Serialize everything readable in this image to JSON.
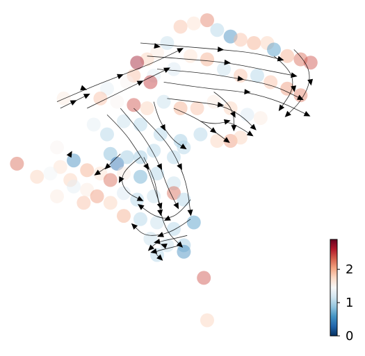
{
  "chart_data": {
    "type": "scatter",
    "title": "",
    "xlabel": "",
    "ylabel": "",
    "axes_visible": false,
    "grid": false,
    "overlay": "velocity-streamlines",
    "colormap": "RdBu_r",
    "colorbar": {
      "placement": "bottom-right",
      "vmin": 0,
      "vmax": 2.9,
      "ticks": [
        0,
        1,
        2
      ],
      "tick_labels": [
        "0",
        "1",
        "2"
      ],
      "stops": [
        "#053061",
        "#2166ac",
        "#4393c3",
        "#92c5de",
        "#d1e5f0",
        "#f7f7f7",
        "#fddbc7",
        "#f4a582",
        "#d6604d",
        "#b2182b",
        "#67001f"
      ]
    },
    "xlim": [
      0,
      100
    ],
    "ylim": [
      0,
      100
    ],
    "points": [
      {
        "x": 52,
        "y": 95,
        "v": 1.9
      },
      {
        "x": 56,
        "y": 96,
        "v": 1.7
      },
      {
        "x": 60,
        "y": 97,
        "v": 2.2
      },
      {
        "x": 63,
        "y": 94,
        "v": 1.0
      },
      {
        "x": 67,
        "y": 92,
        "v": 0.5
      },
      {
        "x": 70,
        "y": 91,
        "v": 1.9
      },
      {
        "x": 74,
        "y": 90,
        "v": 2.0
      },
      {
        "x": 78,
        "y": 90,
        "v": 1.8
      },
      {
        "x": 80,
        "y": 88,
        "v": 0.6
      },
      {
        "x": 84,
        "y": 86,
        "v": 2.0
      },
      {
        "x": 88,
        "y": 85,
        "v": 2.3
      },
      {
        "x": 91,
        "y": 84,
        "v": 2.4
      },
      {
        "x": 48,
        "y": 90,
        "v": 1.1
      },
      {
        "x": 45,
        "y": 87,
        "v": 1.6
      },
      {
        "x": 42,
        "y": 85,
        "v": 1.8
      },
      {
        "x": 39,
        "y": 84,
        "v": 2.7
      },
      {
        "x": 38,
        "y": 80,
        "v": 1.9
      },
      {
        "x": 36,
        "y": 78,
        "v": 1.5
      },
      {
        "x": 44,
        "y": 80,
        "v": 1.3
      },
      {
        "x": 50,
        "y": 82,
        "v": 1.2
      },
      {
        "x": 55,
        "y": 86,
        "v": 1.7
      },
      {
        "x": 60,
        "y": 85,
        "v": 2.0
      },
      {
        "x": 65,
        "y": 82,
        "v": 1.1
      },
      {
        "x": 70,
        "y": 80,
        "v": 1.9
      },
      {
        "x": 75,
        "y": 80,
        "v": 1.0
      },
      {
        "x": 79,
        "y": 78,
        "v": 1.9
      },
      {
        "x": 84,
        "y": 76,
        "v": 2.1
      },
      {
        "x": 88,
        "y": 74,
        "v": 2.2
      },
      {
        "x": 30,
        "y": 76,
        "v": 1.3
      },
      {
        "x": 33,
        "y": 72,
        "v": 1.5
      },
      {
        "x": 28,
        "y": 73,
        "v": 1.9
      },
      {
        "x": 17,
        "y": 73,
        "v": 1.6
      },
      {
        "x": 38,
        "y": 71,
        "v": 2.4
      },
      {
        "x": 42,
        "y": 70,
        "v": 1.8
      },
      {
        "x": 47,
        "y": 72,
        "v": 1.1
      },
      {
        "x": 52,
        "y": 70,
        "v": 2.0
      },
      {
        "x": 57,
        "y": 70,
        "v": 1.9
      },
      {
        "x": 62,
        "y": 72,
        "v": 1.6
      },
      {
        "x": 67,
        "y": 70,
        "v": 1.8
      },
      {
        "x": 72,
        "y": 68,
        "v": 1.2
      },
      {
        "x": 76,
        "y": 67,
        "v": 1.6
      },
      {
        "x": 26,
        "y": 65,
        "v": 1.3
      },
      {
        "x": 30,
        "y": 62,
        "v": 1.0
      },
      {
        "x": 35,
        "y": 66,
        "v": 1.1
      },
      {
        "x": 40,
        "y": 65,
        "v": 1.0
      },
      {
        "x": 46,
        "y": 62,
        "v": 1.0
      },
      {
        "x": 52,
        "y": 60,
        "v": 0.9
      },
      {
        "x": 58,
        "y": 62,
        "v": 1.0
      },
      {
        "x": 63,
        "y": 60,
        "v": 1.8
      },
      {
        "x": 67,
        "y": 60,
        "v": 2.1
      },
      {
        "x": 70,
        "y": 61,
        "v": 1.8
      },
      {
        "x": 31,
        "y": 56,
        "v": 0.8
      },
      {
        "x": 33,
        "y": 53,
        "v": 0.3
      },
      {
        "x": 36,
        "y": 55,
        "v": 0.9
      },
      {
        "x": 40,
        "y": 55,
        "v": 0.9
      },
      {
        "x": 44,
        "y": 57,
        "v": 1.0
      },
      {
        "x": 50,
        "y": 55,
        "v": 1.0
      },
      {
        "x": 53,
        "y": 58,
        "v": 1.0
      },
      {
        "x": 15,
        "y": 58,
        "v": 1.5
      },
      {
        "x": 20,
        "y": 54,
        "v": 0.5
      },
      {
        "x": 16,
        "y": 52,
        "v": 1.7
      },
      {
        "x": 13,
        "y": 50,
        "v": 1.4
      },
      {
        "x": 9,
        "y": 49,
        "v": 1.8
      },
      {
        "x": 3,
        "y": 53,
        "v": 2.3
      },
      {
        "x": 19,
        "y": 48,
        "v": 1.8
      },
      {
        "x": 20,
        "y": 46,
        "v": 1.3
      },
      {
        "x": 24,
        "y": 51,
        "v": 2.0
      },
      {
        "x": 28,
        "y": 50,
        "v": 1.7
      },
      {
        "x": 31,
        "y": 48,
        "v": 2.3
      },
      {
        "x": 35,
        "y": 50,
        "v": 1.6
      },
      {
        "x": 40,
        "y": 49,
        "v": 0.7
      },
      {
        "x": 45,
        "y": 50,
        "v": 1.0
      },
      {
        "x": 50,
        "y": 47,
        "v": 1.1
      },
      {
        "x": 24,
        "y": 45,
        "v": 1.6
      },
      {
        "x": 27,
        "y": 43,
        "v": 2.1
      },
      {
        "x": 31,
        "y": 41,
        "v": 1.8
      },
      {
        "x": 35,
        "y": 44,
        "v": 1.2
      },
      {
        "x": 39,
        "y": 42,
        "v": 1.0
      },
      {
        "x": 44,
        "y": 43,
        "v": 1.1
      },
      {
        "x": 50,
        "y": 44,
        "v": 2.3
      },
      {
        "x": 53,
        "y": 42,
        "v": 1.0
      },
      {
        "x": 35,
        "y": 37,
        "v": 2.0
      },
      {
        "x": 40,
        "y": 36,
        "v": 1.0
      },
      {
        "x": 45,
        "y": 35,
        "v": 1.1
      },
      {
        "x": 50,
        "y": 33,
        "v": 1.0
      },
      {
        "x": 56,
        "y": 35,
        "v": 0.6
      },
      {
        "x": 43,
        "y": 30,
        "v": 1.1
      },
      {
        "x": 48,
        "y": 28,
        "v": 1.1
      },
      {
        "x": 53,
        "y": 28,
        "v": 0.9
      },
      {
        "x": 53,
        "y": 26,
        "v": 0.5
      },
      {
        "x": 45,
        "y": 25,
        "v": 1.0
      },
      {
        "x": 59,
        "y": 18,
        "v": 2.4
      },
      {
        "x": 60,
        "y": 5,
        "v": 1.8
      },
      {
        "x": 43,
        "y": 78,
        "v": 2.5
      },
      {
        "x": 23,
        "y": 41,
        "v": 1.9
      },
      {
        "x": 15,
        "y": 43,
        "v": 1.6
      }
    ],
    "streamlines": [
      {
        "points": [
          [
            40,
            90
          ],
          [
            52,
            89
          ],
          [
            64,
            88
          ],
          [
            74,
            87
          ],
          [
            82,
            85
          ]
        ],
        "arrow": true
      },
      {
        "points": [
          [
            42,
            86
          ],
          [
            55,
            85
          ],
          [
            66,
            84
          ],
          [
            76,
            82
          ],
          [
            86,
            80
          ]
        ],
        "arrow": true
      },
      {
        "points": [
          [
            45,
            82
          ],
          [
            58,
            81
          ],
          [
            70,
            79
          ],
          [
            80,
            77
          ],
          [
            88,
            73
          ]
        ],
        "arrow": true
      },
      {
        "points": [
          [
            47,
            78
          ],
          [
            60,
            76
          ],
          [
            72,
            75
          ],
          [
            82,
            72
          ],
          [
            90,
            68
          ]
        ],
        "arrow": true
      },
      {
        "points": [
          [
            86,
            88
          ],
          [
            90,
            84
          ],
          [
            91,
            78
          ],
          [
            88,
            72
          ],
          [
            84,
            68
          ]
        ],
        "arrow": true
      },
      {
        "points": [
          [
            80,
            86
          ],
          [
            85,
            82
          ],
          [
            86,
            76
          ],
          [
            82,
            70
          ]
        ],
        "arrow": true
      },
      {
        "points": [
          [
            15,
            72
          ],
          [
            24,
            76
          ],
          [
            34,
            80
          ],
          [
            44,
            84
          ],
          [
            52,
            88
          ]
        ],
        "arrow": true
      },
      {
        "points": [
          [
            24,
            70
          ],
          [
            32,
            74
          ],
          [
            40,
            78
          ],
          [
            48,
            82
          ]
        ],
        "arrow": true
      },
      {
        "points": [
          [
            48,
            73
          ],
          [
            56,
            72
          ],
          [
            64,
            71
          ],
          [
            70,
            68
          ],
          [
            74,
            64
          ]
        ],
        "arrow": true
      },
      {
        "points": [
          [
            50,
            70
          ],
          [
            57,
            67
          ],
          [
            62,
            63
          ],
          [
            66,
            60
          ]
        ],
        "arrow": true
      },
      {
        "points": [
          [
            44,
            72
          ],
          [
            45,
            68
          ],
          [
            47,
            64
          ],
          [
            50,
            60
          ],
          [
            53,
            58
          ]
        ],
        "arrow": true
      },
      {
        "points": [
          [
            30,
            68
          ],
          [
            35,
            63
          ],
          [
            39,
            57
          ],
          [
            42,
            52
          ],
          [
            44,
            46
          ],
          [
            46,
            40
          ]
        ],
        "arrow": true
      },
      {
        "points": [
          [
            34,
            70
          ],
          [
            39,
            64
          ],
          [
            43,
            58
          ],
          [
            46,
            52
          ],
          [
            48,
            46
          ],
          [
            51,
            40
          ]
        ],
        "arrow": true
      },
      {
        "points": [
          [
            38,
            70
          ],
          [
            44,
            64
          ],
          [
            49,
            58
          ],
          [
            52,
            52
          ],
          [
            54,
            46
          ],
          [
            55,
            38
          ]
        ],
        "arrow": true
      },
      {
        "points": [
          [
            41,
            55
          ],
          [
            44,
            49
          ],
          [
            45,
            44
          ],
          [
            46,
            38
          ],
          [
            48,
            32
          ],
          [
            52,
            28
          ]
        ],
        "arrow": true
      },
      {
        "points": [
          [
            55,
            42
          ],
          [
            52,
            38
          ],
          [
            48,
            36
          ],
          [
            44,
            37
          ],
          [
            40,
            40
          ]
        ],
        "arrow": true
      },
      {
        "points": [
          [
            55,
            36
          ],
          [
            51,
            33
          ],
          [
            46,
            31
          ],
          [
            41,
            31
          ],
          [
            38,
            34
          ]
        ],
        "arrow": true
      },
      {
        "points": [
          [
            54,
            31
          ],
          [
            50,
            30
          ],
          [
            45,
            29
          ],
          [
            43,
            27
          ]
        ],
        "arrow": true
      },
      {
        "points": [
          [
            52,
            28
          ],
          [
            48,
            27
          ],
          [
            44,
            26
          ],
          [
            46,
            24
          ]
        ],
        "arrow": true
      },
      {
        "points": [
          [
            34,
            56
          ],
          [
            32,
            54
          ],
          [
            30,
            52
          ],
          [
            27,
            50
          ]
        ],
        "arrow": true
      },
      {
        "points": [
          [
            40,
            55
          ],
          [
            36,
            52
          ],
          [
            34,
            48
          ],
          [
            36,
            44
          ],
          [
            40,
            42
          ]
        ],
        "arrow": true
      },
      {
        "points": [
          [
            16,
            70
          ],
          [
            20,
            72
          ],
          [
            24,
            74
          ]
        ],
        "arrow": true
      },
      {
        "points": [
          [
            58,
            66
          ],
          [
            62,
            65
          ],
          [
            66,
            66
          ],
          [
            70,
            64
          ],
          [
            73,
            62
          ]
        ],
        "arrow": true
      },
      {
        "points": [
          [
            62,
            75
          ],
          [
            66,
            72
          ],
          [
            68,
            68
          ],
          [
            68,
            64
          ]
        ],
        "arrow": true
      }
    ],
    "free_arrows": [
      {
        "x": 19,
        "y": 56,
        "angle": -60
      },
      {
        "x": 47,
        "y": 28,
        "angle": 200
      },
      {
        "x": 45,
        "y": 89,
        "angle": 10
      },
      {
        "x": 23,
        "y": 76,
        "angle": 20
      }
    ]
  }
}
